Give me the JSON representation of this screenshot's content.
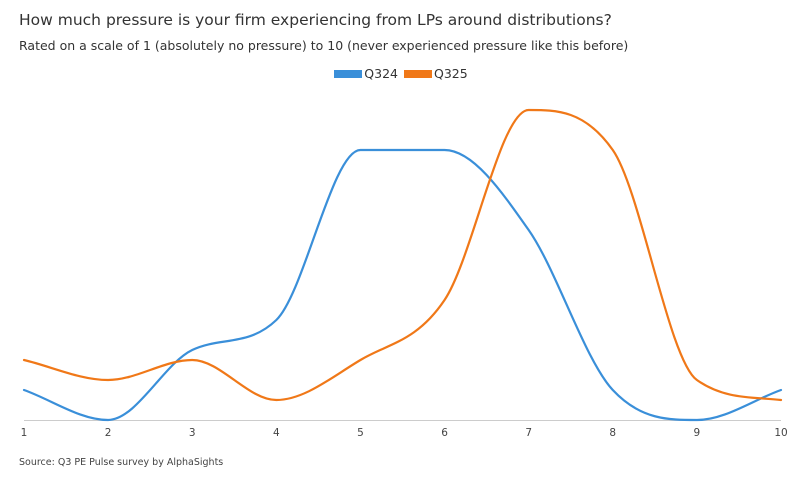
{
  "colors": {
    "q324": "#3a8fd9",
    "q325": "#f07818",
    "axis": "#cccccc",
    "text": "#333333"
  },
  "chart_data": {
    "type": "line",
    "title": "How much pressure is your firm experiencing from LPs around distributions?",
    "subtitle": "Rated on a scale of 1 (absolutely no pressure) to 10 (never experienced pressure like this before)",
    "xlabel": "",
    "ylabel": "",
    "x": [
      1,
      2,
      3,
      4,
      5,
      6,
      7,
      8,
      9,
      10
    ],
    "ylim": [
      0,
      30
    ],
    "grid": false,
    "legend_position": "top-center",
    "series": [
      {
        "name": "Q324",
        "values": [
          3,
          0,
          7,
          10,
          27,
          27,
          19,
          3,
          0,
          3
        ]
      },
      {
        "name": "Q325",
        "values": [
          6,
          4,
          6,
          2,
          6,
          12,
          31,
          27,
          4,
          2
        ]
      }
    ],
    "source": "Source: Q3 PE Pulse survey by AlphaSights"
  }
}
